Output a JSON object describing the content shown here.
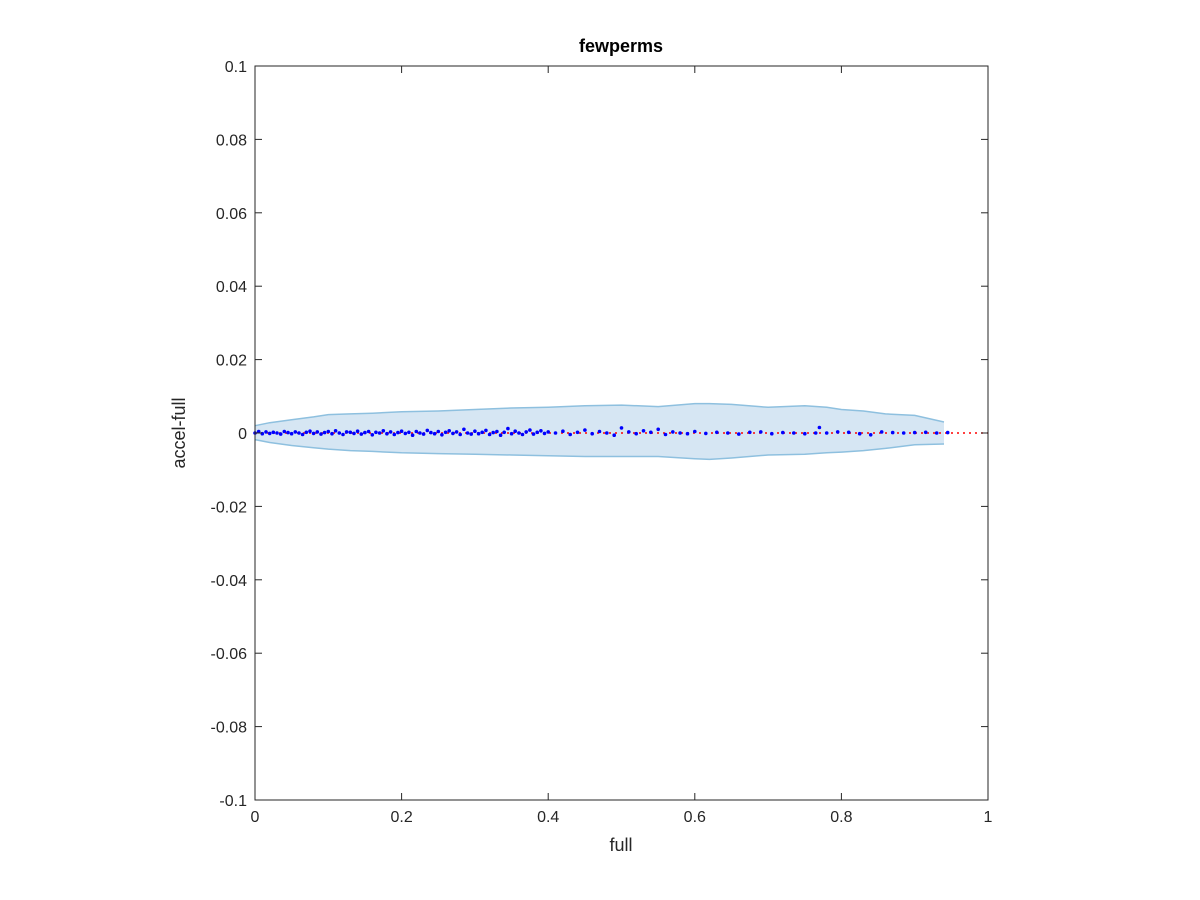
{
  "chart_data": {
    "type": "scatter",
    "title": "fewperms",
    "xlabel": "full",
    "ylabel": "accel-full",
    "xlim": [
      0,
      1
    ],
    "ylim": [
      -0.1,
      0.1
    ],
    "xticks": [
      0,
      0.2,
      0.4,
      0.6,
      0.8,
      1
    ],
    "xtick_labels": [
      "0",
      "0.2",
      "0.4",
      "0.6",
      "0.8",
      "1"
    ],
    "yticks": [
      -0.1,
      -0.08,
      -0.06,
      -0.04,
      -0.02,
      0,
      0.02,
      0.04,
      0.06,
      0.08,
      0.1
    ],
    "ytick_labels": [
      "-0.1",
      "-0.08",
      "-0.06",
      "-0.04",
      "-0.02",
      "0",
      "0.02",
      "0.04",
      "0.06",
      "0.08",
      "0.1"
    ],
    "grid": false,
    "reference_line": {
      "y": 0,
      "x_range": [
        0,
        1
      ],
      "style": "dotted",
      "color": "#ff0000"
    },
    "band": {
      "color": "#8ec0df",
      "fill": "#d6e6f3",
      "x": [
        0.0,
        0.02,
        0.05,
        0.08,
        0.1,
        0.13,
        0.16,
        0.2,
        0.25,
        0.3,
        0.35,
        0.4,
        0.45,
        0.5,
        0.55,
        0.6,
        0.62,
        0.65,
        0.7,
        0.75,
        0.78,
        0.8,
        0.83,
        0.86,
        0.9,
        0.94
      ],
      "upper": [
        0.002,
        0.0028,
        0.0036,
        0.0044,
        0.005,
        0.0052,
        0.0054,
        0.0058,
        0.006,
        0.0064,
        0.0068,
        0.007,
        0.0074,
        0.0076,
        0.0072,
        0.008,
        0.008,
        0.0078,
        0.007,
        0.0074,
        0.007,
        0.0064,
        0.006,
        0.0052,
        0.0048,
        0.003
      ],
      "lower": [
        -0.0018,
        -0.0026,
        -0.0034,
        -0.004,
        -0.0044,
        -0.0048,
        -0.005,
        -0.0054,
        -0.0056,
        -0.0058,
        -0.006,
        -0.0062,
        -0.0064,
        -0.0064,
        -0.0064,
        -0.007,
        -0.0072,
        -0.0068,
        -0.006,
        -0.0058,
        -0.0054,
        -0.0052,
        -0.0048,
        -0.0042,
        -0.0032,
        -0.003
      ]
    },
    "series": [
      {
        "color": "#0000ff",
        "marker": "dot",
        "x": [
          0.0,
          0.005,
          0.01,
          0.015,
          0.02,
          0.025,
          0.03,
          0.035,
          0.04,
          0.045,
          0.05,
          0.055,
          0.06,
          0.065,
          0.07,
          0.075,
          0.08,
          0.085,
          0.09,
          0.095,
          0.1,
          0.105,
          0.11,
          0.115,
          0.12,
          0.125,
          0.13,
          0.135,
          0.14,
          0.145,
          0.15,
          0.155,
          0.16,
          0.165,
          0.17,
          0.175,
          0.18,
          0.185,
          0.19,
          0.195,
          0.2,
          0.205,
          0.21,
          0.215,
          0.22,
          0.225,
          0.23,
          0.235,
          0.24,
          0.245,
          0.25,
          0.255,
          0.26,
          0.265,
          0.27,
          0.275,
          0.28,
          0.285,
          0.29,
          0.295,
          0.3,
          0.305,
          0.31,
          0.315,
          0.32,
          0.325,
          0.33,
          0.335,
          0.34,
          0.345,
          0.35,
          0.355,
          0.36,
          0.365,
          0.37,
          0.375,
          0.38,
          0.385,
          0.39,
          0.395,
          0.4,
          0.41,
          0.42,
          0.43,
          0.44,
          0.45,
          0.46,
          0.47,
          0.48,
          0.49,
          0.5,
          0.51,
          0.52,
          0.53,
          0.54,
          0.55,
          0.56,
          0.57,
          0.58,
          0.59,
          0.6,
          0.615,
          0.63,
          0.645,
          0.66,
          0.675,
          0.69,
          0.705,
          0.72,
          0.735,
          0.75,
          0.765,
          0.77,
          0.78,
          0.795,
          0.81,
          0.825,
          0.84,
          0.855,
          0.87,
          0.885,
          0.9,
          0.915,
          0.93,
          0.945
        ],
        "y": [
          0.0,
          0.0004,
          -0.0002,
          0.0003,
          -0.0001,
          0.0002,
          0.0,
          -0.0003,
          0.0004,
          0.0001,
          -0.0002,
          0.0003,
          0.0,
          -0.0004,
          0.0002,
          0.0005,
          -0.0001,
          0.0003,
          -0.0003,
          0.0001,
          0.0004,
          -0.0002,
          0.0006,
          0.0,
          -0.0004,
          0.0003,
          0.0002,
          -0.0001,
          0.0005,
          -0.0003,
          0.0001,
          0.0004,
          -0.0005,
          0.0002,
          0.0,
          0.0006,
          -0.0002,
          0.0003,
          -0.0004,
          0.0001,
          0.0005,
          -0.0001,
          0.0002,
          -0.0006,
          0.0004,
          0.0,
          -0.0003,
          0.0007,
          0.0001,
          -0.0002,
          0.0004,
          -0.0005,
          0.0002,
          0.0006,
          -0.0001,
          0.0003,
          -0.0004,
          0.001,
          0.0,
          -0.0003,
          0.0005,
          -0.0002,
          0.0002,
          0.0007,
          -0.0004,
          0.0001,
          0.0004,
          -0.0006,
          0.0002,
          0.0012,
          -0.0002,
          0.0005,
          0.0,
          -0.0004,
          0.0003,
          0.0008,
          -0.0003,
          0.0002,
          0.0006,
          -0.0001,
          0.0003,
          0.0,
          0.0005,
          -0.0004,
          0.0002,
          0.0008,
          -0.0002,
          0.0004,
          0.0,
          -0.0006,
          0.0014,
          0.0003,
          -0.0002,
          0.0006,
          0.0002,
          0.001,
          -0.0004,
          0.0003,
          0.0,
          -0.0002,
          0.0004,
          -0.0001,
          0.0002,
          0.0,
          -0.0003,
          0.0002,
          0.0003,
          -0.0002,
          0.0001,
          0.0,
          -0.0002,
          0.0,
          0.0015,
          0.0,
          0.0003,
          0.0002,
          -0.0002,
          -0.0005,
          0.0003,
          0.0001,
          0.0,
          0.0001,
          0.0002,
          0.0,
          0.0001
        ]
      }
    ]
  }
}
